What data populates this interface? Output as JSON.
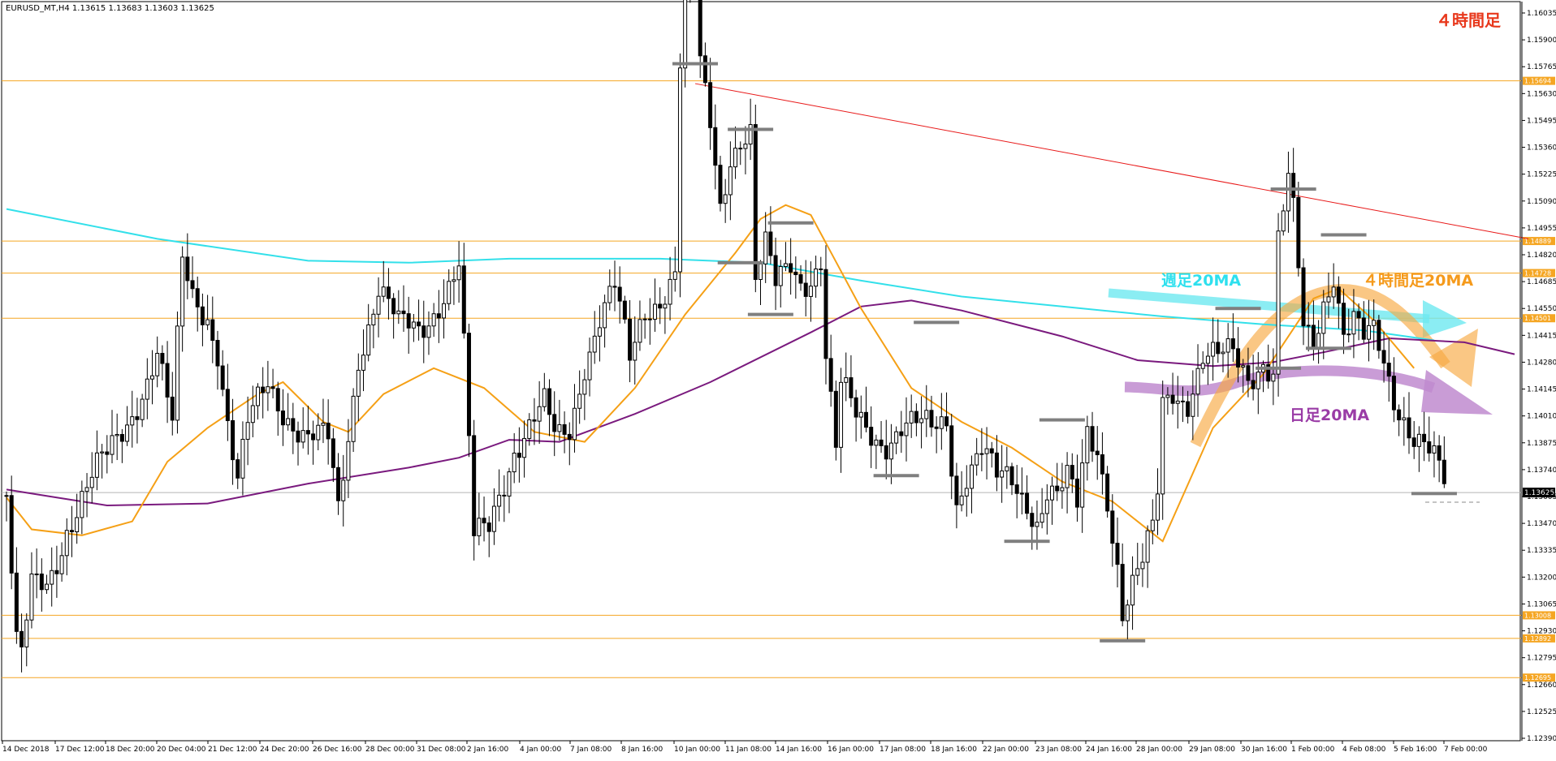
{
  "window": {
    "header": "EURUSD_MT,H4  1.13615 1.13683 1.13603 1.13625",
    "timeframe_label": "４時間足"
  },
  "chart_data": {
    "type": "candlestick",
    "symbol": "EURUSD_MT",
    "timeframe": "H4",
    "ohlc_last": {
      "open": 1.13615,
      "high": 1.13683,
      "low": 1.13603,
      "close": 1.13625
    },
    "ylim": [
      1.1239,
      1.1613
    ],
    "y_ticks": [
      "1.16035",
      "1.15900",
      "1.15765",
      "1.15630",
      "1.15495",
      "1.15360",
      "1.15225",
      "1.15090",
      "1.14955",
      "1.14820",
      "1.14685",
      "1.14550",
      "1.14415",
      "1.14280",
      "1.14145",
      "1.14010",
      "1.13875",
      "1.13740",
      "1.13605",
      "1.13470",
      "1.13335",
      "1.13200",
      "1.13065",
      "1.12930",
      "1.12795",
      "1.12660",
      "1.12525",
      "1.12390"
    ],
    "x_ticks": [
      "14 Dec 2018",
      "17 Dec 12:00",
      "18 Dec 20:00",
      "20 Dec 04:00",
      "21 Dec 12:00",
      "24 Dec 20:00",
      "26 Dec 16:00",
      "28 Dec 00:00",
      "31 Dec 08:00",
      "2 Jan 16:00",
      "4 Jan 00:00",
      "7 Jan 08:00",
      "8 Jan 16:00",
      "10 Jan 00:00",
      "11 Jan 08:00",
      "14 Jan 16:00",
      "16 Jan 00:00",
      "17 Jan 08:00",
      "18 Jan 16:00",
      "22 Jan 00:00",
      "23 Jan 08:00",
      "24 Jan 16:00",
      "28 Jan 00:00",
      "29 Jan 08:00",
      "30 Jan 16:00",
      "1 Feb 00:00",
      "4 Feb 08:00",
      "5 Feb 16:00",
      "7 Feb 00:00"
    ],
    "current_price": {
      "value": 1.13625,
      "label": "1.13625"
    },
    "horizontal_levels": [
      {
        "value": 1.15694,
        "label": "1.15694"
      },
      {
        "value": 1.14889,
        "label": "1.14889"
      },
      {
        "value": 1.14728,
        "label": "1.14728"
      },
      {
        "value": 1.14501,
        "label": "1.14501"
      },
      {
        "value": 1.13008,
        "label": "1.13008"
      },
      {
        "value": 1.12892,
        "label": "1.12892"
      },
      {
        "value": 1.12695,
        "label": "1.12695"
      }
    ],
    "trendline": {
      "from": {
        "i": 137,
        "v": 1.1568
      },
      "to": {
        "i": 300,
        "v": 1.149
      }
    },
    "moving_averages": [
      {
        "name": "週足20MA",
        "color": "#33e0ea",
        "points": [
          [
            0,
            1.1505
          ],
          [
            30,
            1.149
          ],
          [
            60,
            1.1479
          ],
          [
            80,
            1.1478
          ],
          [
            100,
            1.148
          ],
          [
            130,
            1.148
          ],
          [
            150,
            1.1478
          ],
          [
            170,
            1.1469
          ],
          [
            190,
            1.1461
          ],
          [
            210,
            1.1456
          ],
          [
            230,
            1.1451
          ],
          [
            250,
            1.1447
          ],
          [
            270,
            1.1444
          ],
          [
            284,
            1.1439
          ]
        ]
      },
      {
        "name": "日足20MA",
        "color": "#7a1a7e",
        "points": [
          [
            0,
            1.1364
          ],
          [
            10,
            1.136
          ],
          [
            20,
            1.1356
          ],
          [
            40,
            1.1357
          ],
          [
            60,
            1.1367
          ],
          [
            80,
            1.1375
          ],
          [
            90,
            1.138
          ],
          [
            100,
            1.1389
          ],
          [
            110,
            1.1388
          ],
          [
            125,
            1.1402
          ],
          [
            140,
            1.1418
          ],
          [
            160,
            1.1443
          ],
          [
            170,
            1.1456
          ],
          [
            180,
            1.1459
          ],
          [
            190,
            1.1454
          ],
          [
            210,
            1.1441
          ],
          [
            225,
            1.1429
          ],
          [
            240,
            1.1426
          ],
          [
            252,
            1.1428
          ],
          [
            262,
            1.1433
          ],
          [
            275,
            1.144
          ],
          [
            290,
            1.1438
          ],
          [
            300,
            1.1432
          ]
        ]
      },
      {
        "name": "４時間足20MA",
        "color": "#f5a016",
        "points": [
          [
            0,
            1.136
          ],
          [
            5,
            1.1344
          ],
          [
            15,
            1.1341
          ],
          [
            25,
            1.1348
          ],
          [
            32,
            1.1378
          ],
          [
            40,
            1.1395
          ],
          [
            50,
            1.1412
          ],
          [
            55,
            1.1418
          ],
          [
            63,
            1.1398
          ],
          [
            68,
            1.1393
          ],
          [
            75,
            1.1412
          ],
          [
            85,
            1.1425
          ],
          [
            95,
            1.1415
          ],
          [
            105,
            1.1393
          ],
          [
            115,
            1.1388
          ],
          [
            125,
            1.1415
          ],
          [
            135,
            1.1452
          ],
          [
            145,
            1.1483
          ],
          [
            150,
            1.15
          ],
          [
            155,
            1.1507
          ],
          [
            160,
            1.1502
          ],
          [
            170,
            1.1455
          ],
          [
            180,
            1.1415
          ],
          [
            190,
            1.1398
          ],
          [
            200,
            1.1385
          ],
          [
            210,
            1.1368
          ],
          [
            220,
            1.1358
          ],
          [
            230,
            1.1338
          ],
          [
            240,
            1.1395
          ],
          [
            250,
            1.1422
          ],
          [
            260,
            1.146
          ],
          [
            265,
            1.1465
          ],
          [
            272,
            1.1449
          ],
          [
            280,
            1.1425
          ]
        ]
      }
    ],
    "series_points": [
      [
        0,
        1.1361
      ],
      [
        2,
        1.1283
      ],
      [
        3,
        1.1275
      ],
      [
        5,
        1.1312
      ],
      [
        8,
        1.1318
      ],
      [
        12,
        1.1348
      ],
      [
        16,
        1.1362
      ],
      [
        20,
        1.1378
      ],
      [
        26,
        1.1412
      ],
      [
        30,
        1.1432
      ],
      [
        33,
        1.1392
      ],
      [
        35,
        1.1475
      ],
      [
        37,
        1.1461
      ],
      [
        40,
        1.1455
      ],
      [
        42,
        1.1438
      ],
      [
        44,
        1.1398
      ],
      [
        46,
        1.1364
      ],
      [
        48,
        1.1392
      ],
      [
        52,
        1.1418
      ],
      [
        56,
        1.1405
      ],
      [
        60,
        1.1388
      ],
      [
        64,
        1.1385
      ],
      [
        66,
        1.1352
      ],
      [
        70,
        1.1435
      ],
      [
        74,
        1.1465
      ],
      [
        78,
        1.1442
      ],
      [
        82,
        1.1445
      ],
      [
        86,
        1.1462
      ],
      [
        90,
        1.1475
      ],
      [
        91,
        1.1432
      ],
      [
        93,
        1.1335
      ],
      [
        96,
        1.1345
      ],
      [
        98,
        1.1365
      ],
      [
        101,
        1.1388
      ],
      [
        104,
        1.1395
      ],
      [
        107,
        1.1402
      ],
      [
        109,
        1.1388
      ],
      [
        110,
        1.1388
      ],
      [
        112,
        1.1395
      ],
      [
        115,
        1.1432
      ],
      [
        118,
        1.1452
      ],
      [
        121,
        1.1462
      ],
      [
        124,
        1.1425
      ],
      [
        127,
        1.1455
      ],
      [
        130,
        1.1465
      ],
      [
        133,
        1.1475
      ],
      [
        134,
        1.1578
      ],
      [
        135,
        1.1605
      ],
      [
        137,
        1.1637
      ],
      [
        138,
        1.1572
      ],
      [
        140,
        1.1546
      ],
      [
        142,
        1.1508
      ],
      [
        144,
        1.1536
      ],
      [
        146,
        1.1545
      ],
      [
        148,
        1.1545
      ],
      [
        149,
        1.1468
      ],
      [
        151,
        1.1482
      ],
      [
        153,
        1.1462
      ],
      [
        156,
        1.1478
      ],
      [
        158,
        1.1472
      ],
      [
        160,
        1.1475
      ],
      [
        162,
        1.1482
      ],
      [
        163,
        1.1432
      ],
      [
        165,
        1.1381
      ],
      [
        166,
        1.1412
      ],
      [
        169,
        1.1398
      ],
      [
        172,
        1.1395
      ],
      [
        175,
        1.1392
      ],
      [
        178,
        1.1395
      ],
      [
        181,
        1.1392
      ],
      [
        184,
        1.1392
      ],
      [
        187,
        1.1402
      ],
      [
        189,
        1.1362
      ],
      [
        191,
        1.1375
      ],
      [
        194,
        1.1382
      ],
      [
        197,
        1.1365
      ],
      [
        200,
        1.1368
      ],
      [
        203,
        1.1362
      ],
      [
        205,
        1.1352
      ],
      [
        207,
        1.1365
      ],
      [
        209,
        1.1358
      ],
      [
        211,
        1.1365
      ],
      [
        213,
        1.1352
      ],
      [
        215,
        1.1392
      ],
      [
        217,
        1.1388
      ],
      [
        219,
        1.1365
      ],
      [
        221,
        1.1328
      ],
      [
        222,
        1.1302
      ],
      [
        224,
        1.1312
      ],
      [
        226,
        1.1322
      ],
      [
        228,
        1.1341
      ],
      [
        229,
        1.1362
      ],
      [
        230,
        1.1408
      ],
      [
        232,
        1.1418
      ],
      [
        235,
        1.1412
      ],
      [
        238,
        1.1428
      ],
      [
        241,
        1.1425
      ],
      [
        244,
        1.1432
      ],
      [
        247,
        1.1425
      ],
      [
        250,
        1.1432
      ],
      [
        252,
        1.1422
      ],
      [
        253,
        1.1488
      ],
      [
        255,
        1.1515
      ],
      [
        256,
        1.1498
      ],
      [
        258,
        1.1442
      ],
      [
        260,
        1.1438
      ],
      [
        262,
        1.1462
      ],
      [
        264,
        1.1478
      ],
      [
        266,
        1.1445
      ],
      [
        268,
        1.1448
      ],
      [
        270,
        1.1435
      ],
      [
        272,
        1.1438
      ],
      [
        274,
        1.1426
      ],
      [
        276,
        1.1412
      ],
      [
        278,
        1.1405
      ],
      [
        280,
        1.1395
      ],
      [
        282,
        1.1388
      ],
      [
        284,
        1.1376
      ],
      [
        286,
        1.1362
      ]
    ],
    "swing_marks": [
      [
        137,
        1.1578
      ],
      [
        148,
        1.1545
      ],
      [
        146,
        1.1478
      ],
      [
        156,
        1.1498
      ],
      [
        152,
        1.1452
      ],
      [
        185,
        1.1448
      ],
      [
        177,
        1.1371
      ],
      [
        210,
        1.1399
      ],
      [
        203,
        1.1338
      ],
      [
        222,
        1.1288
      ],
      [
        256,
        1.1515
      ],
      [
        253,
        1.1425
      ],
      [
        266,
        1.1492
      ],
      [
        263,
        1.1435
      ],
      [
        245,
        1.1455
      ],
      [
        284,
        1.1362
      ]
    ],
    "annotations": [
      {
        "text": "週足20MA",
        "color": "#2ee0ee"
      },
      {
        "text": "４時間足20MA",
        "color": "#f59a1b"
      },
      {
        "text": "日足20MA",
        "color": "#9a3ca6"
      }
    ]
  }
}
